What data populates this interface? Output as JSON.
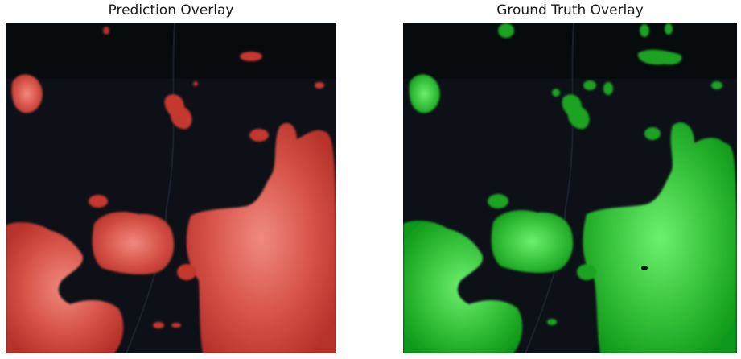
{
  "panels": [
    {
      "title": "Prediction Overlay",
      "overlay_color": "#c0392b",
      "overlay_light": "#f07a6e"
    },
    {
      "title": "Ground Truth Overlay",
      "overlay_color": "#0f9a1a",
      "overlay_light": "#66ee6a"
    }
  ],
  "colors": {
    "background": "#0d1117",
    "page": "#ffffff"
  }
}
